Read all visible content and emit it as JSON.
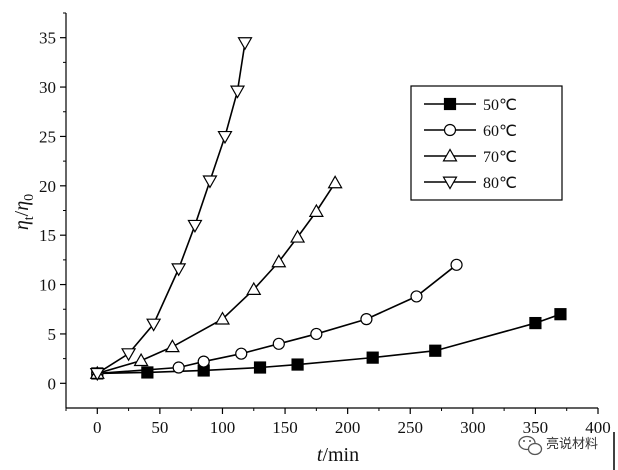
{
  "chart_data": {
    "type": "line",
    "xlabel": {
      "italic": "t",
      "rest": "/min"
    },
    "ylabel": {
      "eta": "η",
      "sub_t": "t",
      "slash": "/",
      "sub_0": "0"
    },
    "xlim": [
      -25,
      400
    ],
    "ylim": [
      -2.5,
      37.5
    ],
    "x_ticks": [
      0,
      50,
      100,
      150,
      200,
      250,
      300,
      350,
      400
    ],
    "y_ticks": [
      0,
      5,
      10,
      15,
      20,
      25,
      30,
      35
    ],
    "legend_position": "top-right",
    "grid": false,
    "series": [
      {
        "name": "50℃",
        "marker": "square-filled",
        "x": [
          0,
          40,
          85,
          130,
          160,
          220,
          270,
          350,
          370
        ],
        "y": [
          1.0,
          1.1,
          1.3,
          1.6,
          1.9,
          2.6,
          3.3,
          6.1,
          7.0
        ]
      },
      {
        "name": "60℃",
        "marker": "circle-open",
        "x": [
          0,
          65,
          85,
          115,
          145,
          175,
          215,
          255,
          287
        ],
        "y": [
          1.0,
          1.6,
          2.2,
          3.0,
          4.0,
          5.0,
          6.5,
          8.8,
          12.0
        ]
      },
      {
        "name": "70℃",
        "marker": "triangle-up-open",
        "x": [
          0,
          35,
          60,
          100,
          125,
          145,
          160,
          175,
          190
        ],
        "y": [
          1.0,
          2.3,
          3.7,
          6.5,
          9.5,
          12.3,
          14.8,
          17.4,
          20.3
        ]
      },
      {
        "name": "80℃",
        "marker": "triangle-down-open",
        "x": [
          0,
          25,
          45,
          65,
          78,
          90,
          102,
          112,
          118
        ],
        "y": [
          1.0,
          3.0,
          6.0,
          11.6,
          16.0,
          20.5,
          25.0,
          29.6,
          34.5
        ]
      }
    ]
  },
  "watermark": {
    "icon": "wechat-icon",
    "text": "亮说材料"
  }
}
